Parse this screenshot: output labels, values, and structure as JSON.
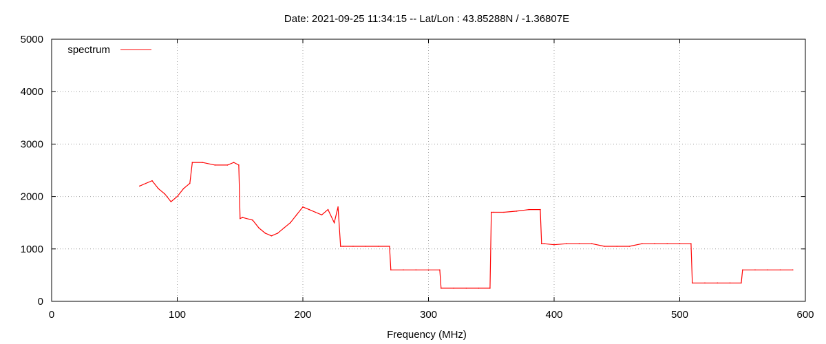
{
  "chart_data": {
    "type": "line",
    "title": "Date: 2021-09-25 11:34:15  --  Lat/Lon : 43.85288N / -1.36807E",
    "xlabel": "Frequency (MHz)",
    "ylabel": "",
    "xlim": [
      0,
      600
    ],
    "ylim": [
      0,
      5000
    ],
    "xticks": [
      0,
      100,
      200,
      300,
      400,
      500,
      600
    ],
    "yticks": [
      0,
      1000,
      2000,
      3000,
      4000,
      5000
    ],
    "grid": true,
    "legend": "top-left",
    "colors": {
      "series": "#ff0000",
      "grid": "#a0a0a0",
      "axis": "#000000"
    },
    "series": [
      {
        "name": "spectrum",
        "x": [
          70,
          75,
          80,
          85,
          90,
          95,
          100,
          105,
          110,
          112,
          120,
          130,
          140,
          145,
          149,
          150,
          152,
          160,
          165,
          170,
          175,
          180,
          185,
          190,
          195,
          200,
          205,
          210,
          215,
          220,
          225,
          228,
          230,
          232,
          240,
          250,
          260,
          269,
          270,
          280,
          290,
          300,
          309,
          310,
          320,
          330,
          340,
          349,
          350,
          352,
          360,
          370,
          380,
          389,
          390,
          392,
          400,
          410,
          420,
          430,
          440,
          450,
          460,
          470,
          480,
          490,
          500,
          509,
          510,
          520,
          530,
          540,
          549,
          550,
          560,
          570,
          580,
          590
        ],
        "values": [
          2200,
          2250,
          2300,
          2150,
          2050,
          1900,
          2000,
          2150,
          2250,
          2650,
          2650,
          2600,
          2600,
          2650,
          2600,
          1580,
          1600,
          1550,
          1400,
          1300,
          1250,
          1300,
          1400,
          1500,
          1650,
          1800,
          1750,
          1700,
          1650,
          1750,
          1500,
          1800,
          1050,
          1050,
          1050,
          1050,
          1050,
          1050,
          600,
          600,
          600,
          600,
          600,
          250,
          250,
          250,
          250,
          250,
          1700,
          1700,
          1700,
          1720,
          1750,
          1750,
          1100,
          1100,
          1080,
          1100,
          1100,
          1100,
          1050,
          1050,
          1050,
          1100,
          1100,
          1100,
          1100,
          1100,
          350,
          350,
          350,
          350,
          350,
          600,
          600,
          600,
          600,
          600
        ]
      }
    ]
  }
}
